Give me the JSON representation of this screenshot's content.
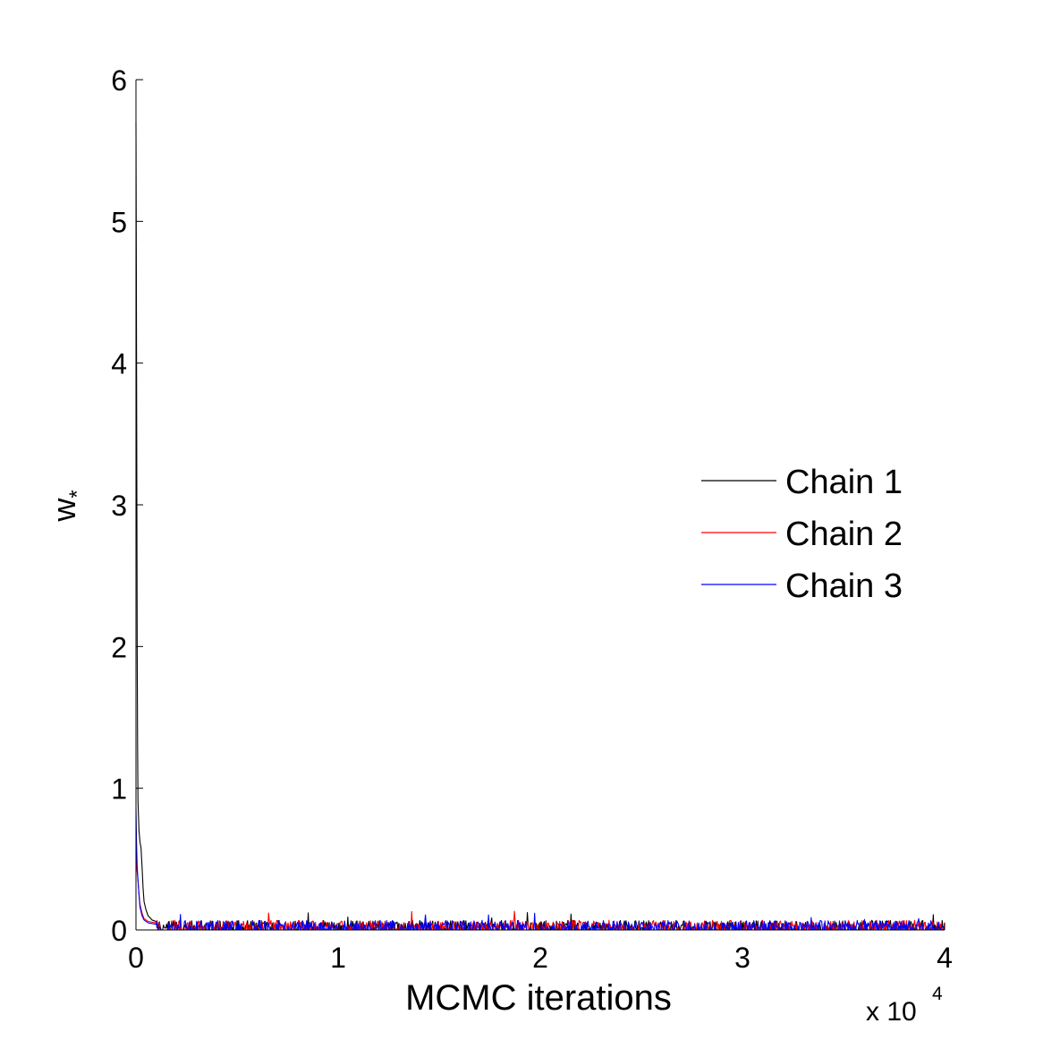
{
  "chart_data": {
    "type": "line",
    "title": "",
    "xlabel": "MCMC iterations",
    "ylabel": "w",
    "ylabel_subscript": "*",
    "x_multiplier_text": "x 10",
    "x_multiplier_exponent": "4",
    "xlim": [
      0,
      40000
    ],
    "ylim": [
      0,
      6
    ],
    "x_ticks": [
      0,
      10000,
      20000,
      30000,
      40000
    ],
    "x_tick_labels": [
      "0",
      "1",
      "2",
      "3",
      "4"
    ],
    "y_ticks": [
      0,
      1,
      2,
      3,
      4,
      5,
      6
    ],
    "y_tick_labels": [
      "0",
      "1",
      "2",
      "3",
      "4",
      "5",
      "6"
    ],
    "grid": false,
    "legend_position": "right",
    "colors": {
      "chain1": "#000000",
      "chain2": "#ff0000",
      "chain3": "#0000ff"
    },
    "series": [
      {
        "name": "Chain 1",
        "color": "#000000",
        "points": [
          [
            0,
            5.7
          ],
          [
            20,
            4.6
          ],
          [
            40,
            3.3
          ],
          [
            60,
            2.0
          ],
          [
            80,
            1.3
          ],
          [
            100,
            0.9
          ],
          [
            150,
            0.7
          ],
          [
            200,
            0.62
          ],
          [
            250,
            0.58
          ],
          [
            300,
            0.45
          ],
          [
            350,
            0.3
          ],
          [
            400,
            0.2
          ],
          [
            500,
            0.14
          ],
          [
            600,
            0.1
          ],
          [
            800,
            0.07
          ],
          [
            1000,
            0.06
          ]
        ],
        "tail_level": 0.04,
        "tail_spike_max": 0.13
      },
      {
        "name": "Chain 2",
        "color": "#ff0000",
        "points": [
          [
            0,
            0.55
          ],
          [
            50,
            0.42
          ],
          [
            100,
            0.35
          ],
          [
            150,
            0.25
          ],
          [
            200,
            0.18
          ],
          [
            300,
            0.12
          ],
          [
            400,
            0.08
          ],
          [
            600,
            0.06
          ],
          [
            1000,
            0.05
          ]
        ],
        "tail_level": 0.04,
        "tail_spike_max": 0.14
      },
      {
        "name": "Chain 3",
        "color": "#0000ff",
        "points": [
          [
            0,
            0.86
          ],
          [
            30,
            0.6
          ],
          [
            60,
            0.45
          ],
          [
            100,
            0.35
          ],
          [
            150,
            0.25
          ],
          [
            200,
            0.16
          ],
          [
            300,
            0.1
          ],
          [
            400,
            0.07
          ],
          [
            600,
            0.05
          ],
          [
            1000,
            0.04
          ]
        ],
        "tail_level": 0.04,
        "tail_spike_max": 0.12
      }
    ]
  }
}
